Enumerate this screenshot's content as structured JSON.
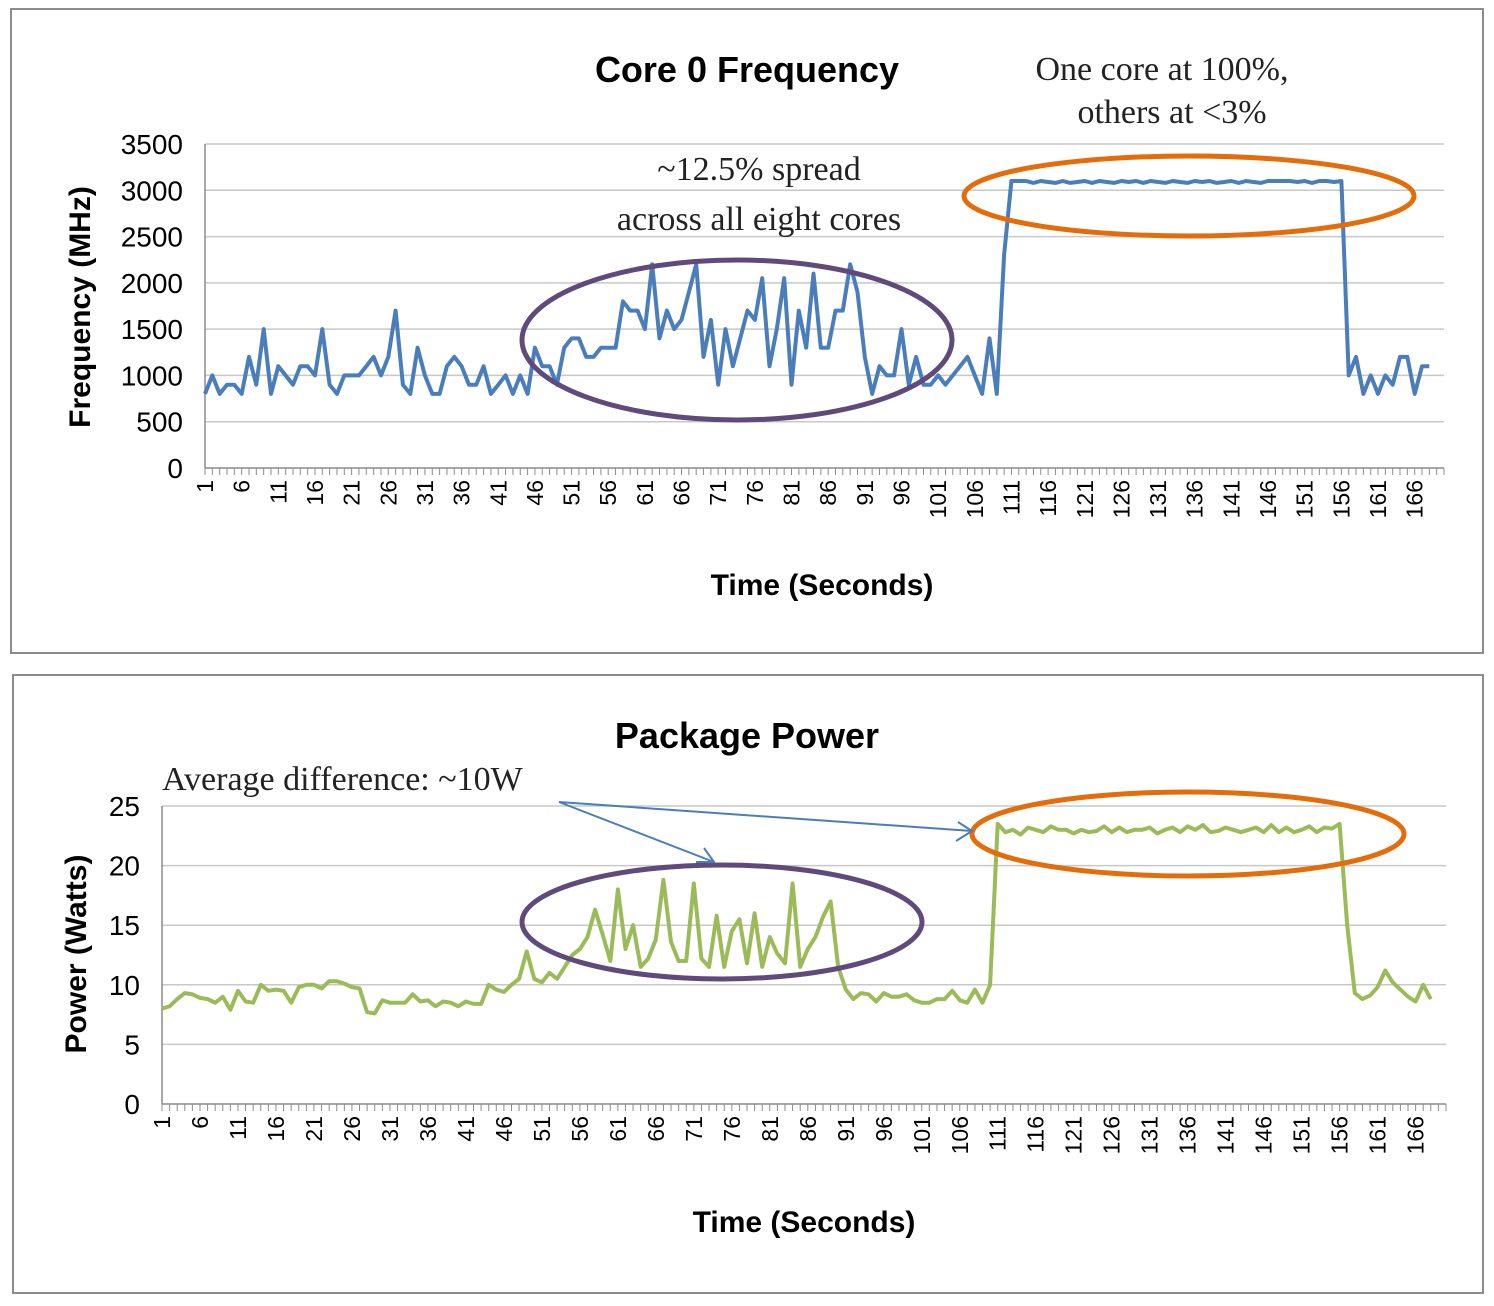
{
  "chart_data": [
    {
      "type": "line",
      "title": "Core 0 Frequency",
      "xlabel": "Time (Seconds)",
      "ylabel": "Frequency (MHz)",
      "ylim": [
        0,
        3500
      ],
      "yticks": [
        0,
        500,
        1000,
        1500,
        2000,
        2500,
        3000,
        3500
      ],
      "xlim": [
        1,
        170
      ],
      "xticks": [
        1,
        6,
        11,
        16,
        21,
        26,
        31,
        36,
        41,
        46,
        51,
        56,
        61,
        66,
        71,
        76,
        81,
        86,
        91,
        96,
        101,
        106,
        111,
        116,
        121,
        126,
        131,
        136,
        141,
        146,
        151,
        156,
        161,
        166
      ],
      "grid": true,
      "line_color": "#4a7ebb",
      "series": [
        {
          "values": [
            800,
            1000,
            800,
            900,
            900,
            800,
            1200,
            900,
            1500,
            800,
            1100,
            1000,
            900,
            1100,
            1100,
            1000,
            1500,
            900,
            800,
            1000,
            1000,
            1000,
            1100,
            1200,
            1000,
            1200,
            1700,
            900,
            800,
            1300,
            1000,
            800,
            800,
            1100,
            1200,
            1100,
            900,
            900,
            1100,
            800,
            900,
            1000,
            800,
            1000,
            800,
            1300,
            1100,
            1100,
            900,
            1300,
            1400,
            1400,
            1200,
            1200,
            1300,
            1300,
            1300,
            1800,
            1700,
            1700,
            1500,
            2200,
            1400,
            1700,
            1500,
            1600,
            1900,
            2200,
            1200,
            1600,
            900,
            1500,
            1100,
            1400,
            1700,
            1600,
            2050,
            1100,
            1500,
            2050,
            900,
            1700,
            1300,
            2100,
            1300,
            1300,
            1700,
            1700,
            2200,
            1900,
            1200,
            800,
            1100,
            1000,
            1000,
            1500,
            900,
            1200,
            900,
            900,
            1000,
            900,
            1000,
            1100,
            1200,
            1000,
            800,
            1400,
            800,
            2300,
            3100,
            3100,
            3100,
            3080,
            3100,
            3090,
            3080,
            3100,
            3080,
            3090,
            3100,
            3080,
            3100,
            3090,
            3080,
            3100,
            3090,
            3100,
            3080,
            3100,
            3090,
            3080,
            3100,
            3090,
            3080,
            3100,
            3090,
            3100,
            3080,
            3090,
            3100,
            3080,
            3100,
            3090,
            3080,
            3100,
            3100,
            3100,
            3100,
            3090,
            3100,
            3080,
            3100,
            3100,
            3090,
            3100,
            1000,
            1200,
            800,
            1000,
            800,
            1000,
            900,
            1200,
            1200,
            800,
            1100,
            1100
          ]
        }
      ],
      "annotations": [
        {
          "lines": [
            "~12.5% spread",
            "across all eight cores"
          ],
          "ellipse_color": "#604a7b"
        },
        {
          "lines": [
            "One core at 100%,",
            "others at <3%"
          ],
          "ellipse_color": "#e46c0a"
        }
      ]
    },
    {
      "type": "line",
      "title": "Package Power",
      "xlabel": "Time (Seconds)",
      "ylabel": "Power (Watts)",
      "ylim": [
        0,
        25
      ],
      "yticks": [
        0,
        5,
        10,
        15,
        20,
        25
      ],
      "xlim": [
        1,
        170
      ],
      "xticks": [
        1,
        6,
        11,
        16,
        21,
        26,
        31,
        36,
        41,
        46,
        51,
        56,
        61,
        66,
        71,
        76,
        81,
        86,
        91,
        96,
        101,
        106,
        111,
        116,
        121,
        126,
        131,
        136,
        141,
        146,
        151,
        156,
        161,
        166
      ],
      "grid": true,
      "line_color": "#9bbb59",
      "series": [
        {
          "values": [
            8,
            8.2,
            8.8,
            9.3,
            9.2,
            8.9,
            8.8,
            8.5,
            9,
            7.9,
            9.5,
            8.6,
            8.5,
            10,
            9.5,
            9.6,
            9.5,
            8.5,
            9.8,
            10,
            10,
            9.7,
            10.3,
            10.3,
            10.1,
            9.8,
            9.7,
            7.7,
            7.6,
            8.7,
            8.5,
            8.5,
            8.5,
            9.2,
            8.6,
            8.7,
            8.2,
            8.6,
            8.5,
            8.2,
            8.6,
            8.4,
            8.4,
            10,
            9.6,
            9.4,
            10,
            10.5,
            12.8,
            10.5,
            10.2,
            11,
            10.5,
            11.5,
            12.5,
            13,
            14,
            16.3,
            14.2,
            12,
            18,
            13,
            15,
            11.5,
            12.2,
            13.8,
            18.8,
            13.6,
            12,
            12,
            18.5,
            12.2,
            11.5,
            15.8,
            11.5,
            14.5,
            15.5,
            11.8,
            16,
            11.5,
            14,
            12.6,
            11.8,
            18.5,
            11.5,
            13,
            14,
            15.7,
            17,
            11.5,
            9.6,
            8.8,
            9.3,
            9.2,
            8.6,
            9.3,
            9,
            9,
            9.2,
            8.7,
            8.5,
            8.5,
            8.8,
            8.8,
            9.5,
            8.7,
            8.5,
            9.6,
            8.5,
            10,
            23.5,
            22.8,
            23,
            22.6,
            23.2,
            23,
            22.8,
            23.3,
            23,
            23,
            22.7,
            23,
            22.8,
            22.9,
            23.3,
            22.8,
            23.2,
            22.8,
            23,
            23,
            23.2,
            22.7,
            23,
            23.2,
            22.8,
            23.3,
            23,
            23.4,
            22.8,
            22.9,
            23.2,
            23,
            22.8,
            23,
            23.2,
            22.8,
            23.4,
            22.8,
            23.2,
            22.8,
            23,
            23.3,
            22.8,
            23.2,
            23.1,
            23.5,
            15,
            9.3,
            8.8,
            9.1,
            9.8,
            11.2,
            10.2,
            9.6,
            9,
            8.6,
            10,
            8.8
          ]
        }
      ],
      "annotations": [
        {
          "lines": [
            "Average difference: ~10W"
          ],
          "arrow_color": "#4a7ebb",
          "ellipse_colors": [
            "#604a7b",
            "#e46c0a"
          ]
        }
      ]
    }
  ]
}
